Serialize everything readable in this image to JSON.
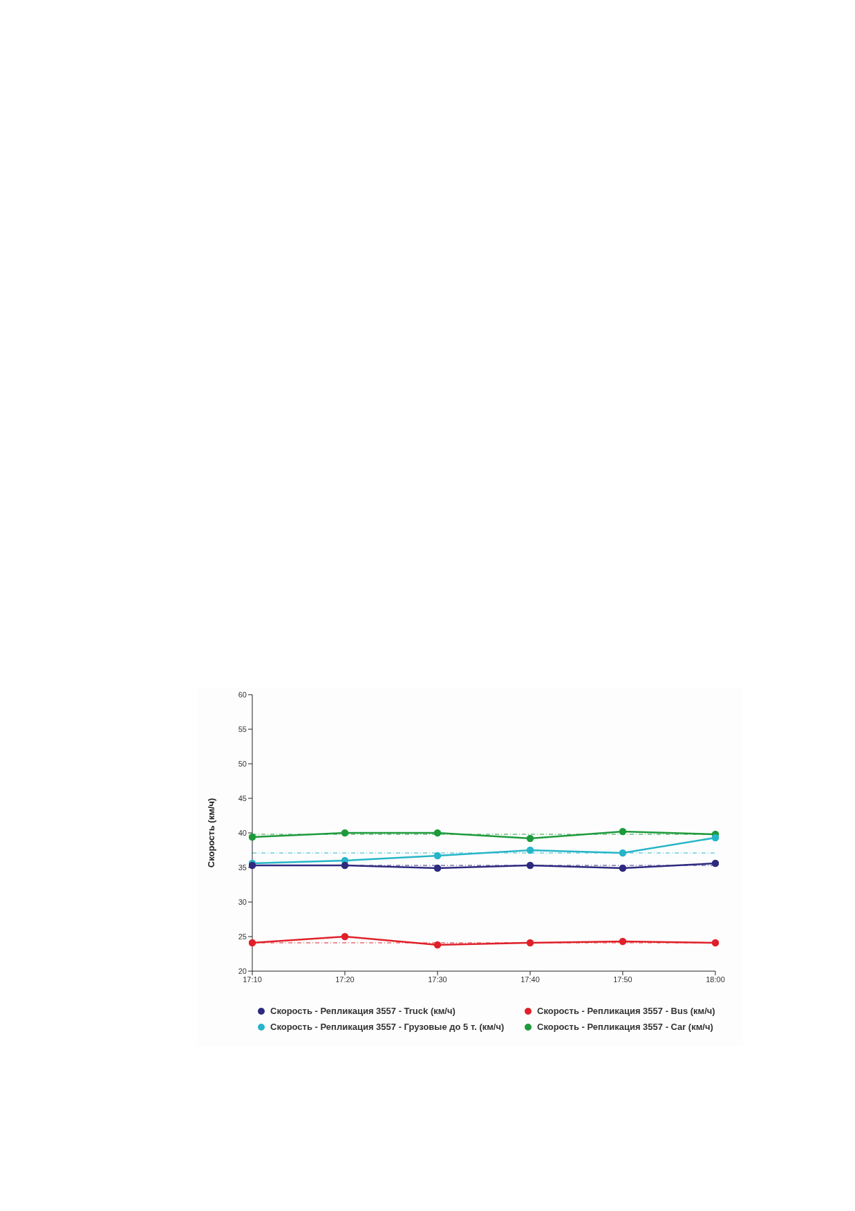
{
  "chart_data": {
    "type": "line",
    "ylabel": "Скорость (км/ч)",
    "x": [
      17.1667,
      17.3333,
      17.5,
      17.6667,
      17.8333,
      18
    ],
    "xlim": [
      17.1667,
      18
    ],
    "xticks": [
      {
        "value": 17.1667,
        "label": "17:10"
      },
      {
        "value": 17.3333,
        "label": "17:20"
      },
      {
        "value": 17.5,
        "label": "17:30"
      },
      {
        "value": 17.6667,
        "label": "17:40"
      },
      {
        "value": 17.8333,
        "label": "17:50"
      },
      {
        "value": 18,
        "label": "18:00"
      }
    ],
    "ylim": [
      20,
      60
    ],
    "yticks": [
      20,
      25,
      30,
      35,
      40,
      45,
      50,
      55,
      60
    ],
    "grid": false,
    "legend": "bottom",
    "marker": "circle",
    "line_style": "solid",
    "series": [
      {
        "name": "Скорость - Репликация 3557 - Truck (км/ч)",
        "color": "#2e2a7f",
        "values": [
          35.3,
          35.3,
          34.9,
          35.3,
          34.9,
          35.6
        ]
      },
      {
        "name": "Скорость - Репликация 3557 - Bus (км/ч)",
        "color": "#e0202a",
        "values": [
          24.1,
          25.0,
          23.8,
          24.1,
          24.3,
          24.1
        ]
      },
      {
        "name": "Скорость - Репликация 3557 - Грузовые до 5 т. (км/ч)",
        "color": "#26b5c8",
        "values": [
          35.6,
          36.0,
          36.7,
          37.5,
          37.1,
          39.3
        ]
      },
      {
        "name": "Скорость - Репликация 3557 - Car (км/ч)",
        "color": "#1e9a3c",
        "values": [
          39.4,
          40.0,
          40.0,
          39.2,
          40.2,
          39.8
        ]
      }
    ],
    "ref_lines": [
      {
        "axis": "y",
        "value": 35.3,
        "color": "#2e2a7f",
        "line_style": "dashed"
      },
      {
        "axis": "y",
        "value": 24.1,
        "color": "#e0202a",
        "line_style": "dashed"
      },
      {
        "axis": "y",
        "value": 37.1,
        "color": "#26b5c8",
        "line_style": "dashed"
      },
      {
        "axis": "y",
        "value": 39.8,
        "color": "#1e9a3c",
        "line_style": "dashed"
      }
    ]
  }
}
